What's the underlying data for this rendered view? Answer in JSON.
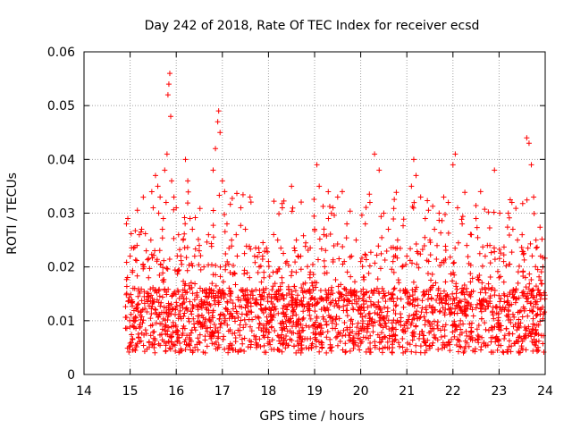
{
  "chart_data": {
    "type": "scatter",
    "title": "Day 242 of 2018, Rate Of TEC Index for receiver ecsd",
    "xlabel": "GPS time / hours",
    "ylabel": "ROTI / TECUs",
    "xlim": [
      14,
      24
    ],
    "ylim": [
      0,
      0.06
    ],
    "xticks": [
      "14",
      "15",
      "16",
      "17",
      "18",
      "19",
      "20",
      "21",
      "22",
      "23",
      "24"
    ],
    "yticks": [
      "0",
      "0.01",
      "0.02",
      "0.03",
      "0.04",
      "0.05",
      "0.06"
    ],
    "grid": true,
    "marker": "+",
    "color": "#ff0000",
    "series": [
      {
        "name": "ROTI",
        "points": [
          [
            14.92,
            0.028
          ],
          [
            14.95,
            0.029
          ],
          [
            15.0,
            0.022
          ],
          [
            15.05,
            0.019
          ],
          [
            15.1,
            0.016
          ],
          [
            15.15,
            0.024
          ],
          [
            15.2,
            0.026
          ],
          [
            15.25,
            0.027
          ],
          [
            15.3,
            0.02
          ],
          [
            15.35,
            0.023
          ],
          [
            15.4,
            0.018
          ],
          [
            15.45,
            0.025
          ],
          [
            15.5,
            0.031
          ],
          [
            15.55,
            0.037
          ],
          [
            15.6,
            0.035
          ],
          [
            15.62,
            0.03
          ],
          [
            15.65,
            0.033
          ],
          [
            15.7,
            0.027
          ],
          [
            15.72,
            0.029
          ],
          [
            15.75,
            0.038
          ],
          [
            15.78,
            0.032
          ],
          [
            15.8,
            0.041
          ],
          [
            15.82,
            0.052
          ],
          [
            15.84,
            0.054
          ],
          [
            15.86,
            0.056
          ],
          [
            15.88,
            0.048
          ],
          [
            15.9,
            0.036
          ],
          [
            15.95,
            0.033
          ],
          [
            16.0,
            0.031
          ],
          [
            16.05,
            0.026
          ],
          [
            16.1,
            0.022
          ],
          [
            16.15,
            0.025
          ],
          [
            16.2,
            0.04
          ],
          [
            16.25,
            0.036
          ],
          [
            16.3,
            0.029
          ],
          [
            16.35,
            0.027
          ],
          [
            16.4,
            0.022
          ],
          [
            16.5,
            0.024
          ],
          [
            16.6,
            0.02
          ],
          [
            16.7,
            0.026
          ],
          [
            16.8,
            0.038
          ],
          [
            16.85,
            0.042
          ],
          [
            16.9,
            0.047
          ],
          [
            16.92,
            0.049
          ],
          [
            16.95,
            0.045
          ],
          [
            17.0,
            0.036
          ],
          [
            17.05,
            0.034
          ],
          [
            17.1,
            0.028
          ],
          [
            17.2,
            0.025
          ],
          [
            17.3,
            0.026
          ],
          [
            17.4,
            0.031
          ],
          [
            17.5,
            0.027
          ],
          [
            17.6,
            0.033
          ],
          [
            17.7,
            0.022
          ],
          [
            17.8,
            0.02
          ],
          [
            17.9,
            0.019
          ],
          [
            18.0,
            0.021
          ],
          [
            18.1,
            0.019
          ],
          [
            18.2,
            0.025
          ],
          [
            18.3,
            0.031
          ],
          [
            18.4,
            0.021
          ],
          [
            18.5,
            0.035
          ],
          [
            18.6,
            0.019
          ],
          [
            18.7,
            0.022
          ],
          [
            18.8,
            0.017
          ],
          [
            18.9,
            0.018
          ],
          [
            19.0,
            0.027
          ],
          [
            19.05,
            0.039
          ],
          [
            19.1,
            0.035
          ],
          [
            19.2,
            0.026
          ],
          [
            19.3,
            0.029
          ],
          [
            19.4,
            0.031
          ],
          [
            19.5,
            0.033
          ],
          [
            19.6,
            0.034
          ],
          [
            19.7,
            0.028
          ],
          [
            19.8,
            0.022
          ],
          [
            19.9,
            0.025
          ],
          [
            20.0,
            0.021
          ],
          [
            20.1,
            0.028
          ],
          [
            20.2,
            0.032
          ],
          [
            20.3,
            0.041
          ],
          [
            20.4,
            0.038
          ],
          [
            20.5,
            0.03
          ],
          [
            20.6,
            0.027
          ],
          [
            20.7,
            0.021
          ],
          [
            20.8,
            0.025
          ],
          [
            20.9,
            0.02
          ],
          [
            21.0,
            0.022
          ],
          [
            21.1,
            0.035
          ],
          [
            21.15,
            0.04
          ],
          [
            21.2,
            0.037
          ],
          [
            21.3,
            0.033
          ],
          [
            21.4,
            0.029
          ],
          [
            21.5,
            0.025
          ],
          [
            21.6,
            0.027
          ],
          [
            21.7,
            0.03
          ],
          [
            21.8,
            0.033
          ],
          [
            21.9,
            0.032
          ],
          [
            22.0,
            0.039
          ],
          [
            22.05,
            0.041
          ],
          [
            22.1,
            0.031
          ],
          [
            22.2,
            0.028
          ],
          [
            22.3,
            0.024
          ],
          [
            22.4,
            0.026
          ],
          [
            22.5,
            0.029
          ],
          [
            22.6,
            0.034
          ],
          [
            22.7,
            0.022
          ],
          [
            22.8,
            0.024
          ],
          [
            22.9,
            0.038
          ],
          [
            23.0,
            0.018
          ],
          [
            23.1,
            0.021
          ],
          [
            23.2,
            0.03
          ],
          [
            23.3,
            0.027
          ],
          [
            23.4,
            0.025
          ],
          [
            23.5,
            0.026
          ],
          [
            23.6,
            0.044
          ],
          [
            23.65,
            0.043
          ],
          [
            23.7,
            0.039
          ],
          [
            23.75,
            0.033
          ],
          [
            23.8,
            0.025
          ],
          [
            23.9,
            0.022
          ],
          [
            23.95,
            0.02
          ]
        ],
        "bulk": {
          "x_range": [
            14.9,
            24.0
          ],
          "typical_range": [
            0.004,
            0.016
          ],
          "upper_range": [
            0.012,
            0.024
          ],
          "count": 2200
        }
      }
    ]
  }
}
